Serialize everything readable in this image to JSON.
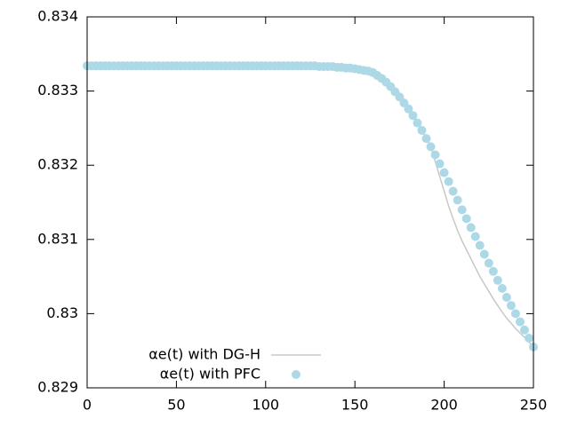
{
  "chart_data": {
    "type": "line",
    "x": [
      0,
      2.5,
      5,
      7.5,
      10,
      12.5,
      15,
      17.5,
      20,
      22.5,
      25,
      27.5,
      30,
      32.5,
      35,
      37.5,
      40,
      42.5,
      45,
      47.5,
      50,
      52.5,
      55,
      57.5,
      60,
      62.5,
      65,
      67.5,
      70,
      72.5,
      75,
      77.5,
      80,
      82.5,
      85,
      87.5,
      90,
      92.5,
      95,
      97.5,
      100,
      102.5,
      105,
      107.5,
      110,
      112.5,
      115,
      117.5,
      120,
      122.5,
      125,
      127.5,
      130,
      132.5,
      135,
      137.5,
      140,
      142.5,
      145,
      147.5,
      150,
      152.5,
      155,
      157.5,
      160,
      162.5,
      165,
      167.5,
      170,
      172.5,
      175,
      177.5,
      180,
      182.5,
      185,
      187.5,
      190,
      192.5,
      195,
      197.5,
      200,
      202.5,
      205,
      207.5,
      210,
      212.5,
      215,
      217.5,
      220,
      222.5,
      225,
      227.5,
      230,
      232.5,
      235,
      237.5,
      240,
      242.5,
      245,
      247.5,
      250
    ],
    "series": [
      {
        "name": "αe(t) with DG-H",
        "color": "#c8c8c8",
        "style": "line",
        "values": [
          0.83334,
          0.83334,
          0.83334,
          0.83334,
          0.83334,
          0.83334,
          0.83334,
          0.83334,
          0.83334,
          0.83334,
          0.83334,
          0.83334,
          0.83334,
          0.83334,
          0.83334,
          0.83334,
          0.83334,
          0.83334,
          0.83334,
          0.83334,
          0.83334,
          0.83334,
          0.83334,
          0.83334,
          0.83334,
          0.83334,
          0.83334,
          0.83334,
          0.83334,
          0.83334,
          0.83334,
          0.83334,
          0.83334,
          0.83334,
          0.83334,
          0.83334,
          0.83334,
          0.83334,
          0.83334,
          0.83334,
          0.83334,
          0.83334,
          0.83334,
          0.83334,
          0.83334,
          0.83334,
          0.83334,
          0.83334,
          0.83334,
          0.83334,
          0.83334,
          0.83334,
          0.83333,
          0.83333,
          0.83333,
          0.83333,
          0.83332,
          0.83332,
          0.83331,
          0.83331,
          0.8333,
          0.83329,
          0.83328,
          0.83327,
          0.83325,
          0.83321,
          0.83317,
          0.83312,
          0.83306,
          0.83299,
          0.83292,
          0.83284,
          0.83276,
          0.83267,
          0.83257,
          0.83247,
          0.83236,
          0.83225,
          0.83205,
          0.83185,
          0.83165,
          0.83145,
          0.83128,
          0.83112,
          0.83098,
          0.83086,
          0.83074,
          0.83062,
          0.8305,
          0.8304,
          0.8303,
          0.8302,
          0.83011,
          0.83002,
          0.82994,
          0.82987,
          0.8298,
          0.82974,
          0.82968,
          0.82962,
          0.82955
        ]
      },
      {
        "name": "αe(t) with PFC",
        "color": "#add8e6",
        "style": "points",
        "values": [
          0.83334,
          0.83334,
          0.83334,
          0.83334,
          0.83334,
          0.83334,
          0.83334,
          0.83334,
          0.83334,
          0.83334,
          0.83334,
          0.83334,
          0.83334,
          0.83334,
          0.83334,
          0.83334,
          0.83334,
          0.83334,
          0.83334,
          0.83334,
          0.83334,
          0.83334,
          0.83334,
          0.83334,
          0.83334,
          0.83334,
          0.83334,
          0.83334,
          0.83334,
          0.83334,
          0.83334,
          0.83334,
          0.83334,
          0.83334,
          0.83334,
          0.83334,
          0.83334,
          0.83334,
          0.83334,
          0.83334,
          0.83334,
          0.83334,
          0.83334,
          0.83334,
          0.83334,
          0.83334,
          0.83334,
          0.83334,
          0.83334,
          0.83334,
          0.83334,
          0.83334,
          0.83333,
          0.83333,
          0.83333,
          0.83333,
          0.83332,
          0.83332,
          0.83331,
          0.83331,
          0.8333,
          0.83329,
          0.83328,
          0.83327,
          0.83325,
          0.83321,
          0.83317,
          0.83312,
          0.83306,
          0.83299,
          0.83292,
          0.83284,
          0.83276,
          0.83267,
          0.83257,
          0.83247,
          0.83236,
          0.83225,
          0.83214,
          0.83202,
          0.8319,
          0.83178,
          0.83165,
          0.83153,
          0.8314,
          0.83128,
          0.83116,
          0.83104,
          0.83092,
          0.8308,
          0.83068,
          0.83057,
          0.83045,
          0.83034,
          0.83022,
          0.83011,
          0.83,
          0.82989,
          0.82978,
          0.82967,
          0.82955
        ]
      }
    ],
    "xlim": [
      0,
      250
    ],
    "xticks": [
      0,
      50,
      100,
      150,
      200,
      250
    ],
    "ylim": [
      0.829,
      0.834
    ],
    "yticks": [
      0.829,
      0.83,
      0.831,
      0.832,
      0.833,
      0.834
    ],
    "grid": false,
    "legend": "bottom-left"
  }
}
